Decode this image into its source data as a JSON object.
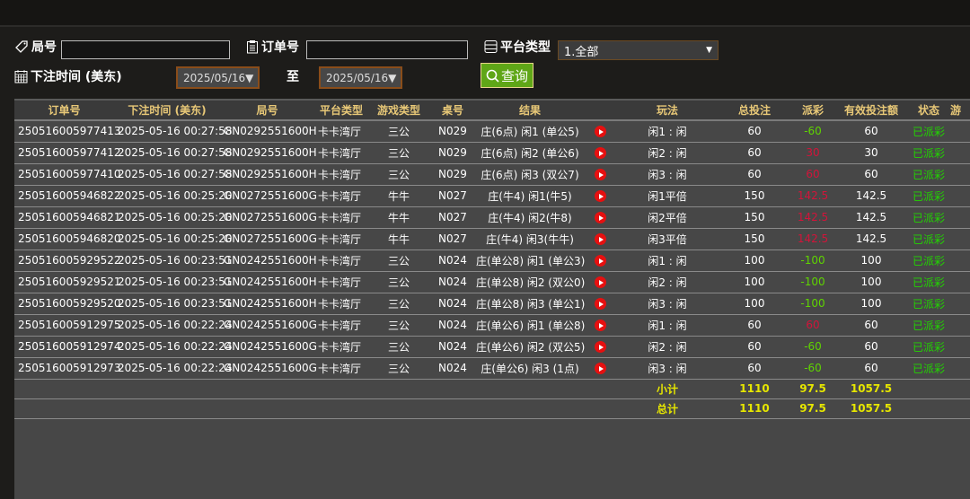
{
  "filters": {
    "round_label": "局号",
    "round_value": "",
    "order_label": "订单号",
    "order_value": "",
    "platform_label": "平台类型",
    "platform_value": "1.全部",
    "time_label": "下注时间 (美东)",
    "date_from": "2025/05/16▼",
    "to_label": "至",
    "date_to": "2025/05/16▼",
    "query_label": "查询"
  },
  "table": {
    "headers": [
      "订单号",
      "下注时间 (美东)",
      "局号",
      "平台类型",
      "游戏类型",
      "桌号",
      "结果",
      "",
      "玩法",
      "总投注",
      "派彩",
      "有效投注额",
      "状态",
      "游"
    ],
    "rows": [
      [
        "250516005977413",
        "2025-05-16 00:27:58",
        "GN0292551600H",
        "卡卡湾厅",
        "三公",
        "N029",
        "庄(6点) 闲1 (单公5)",
        "闲1 : 闲",
        "60",
        "-60",
        "60",
        "已派彩"
      ],
      [
        "250516005977412",
        "2025-05-16 00:27:58",
        "GN0292551600H",
        "卡卡湾厅",
        "三公",
        "N029",
        "庄(6点) 闲2 (单公6)",
        "闲2 : 闲",
        "60",
        "30",
        "30",
        "已派彩"
      ],
      [
        "250516005977410",
        "2025-05-16 00:27:58",
        "GN0292551600H",
        "卡卡湾厅",
        "三公",
        "N029",
        "庄(6点) 闲3 (双公7)",
        "闲3 : 闲",
        "60",
        "60",
        "60",
        "已派彩"
      ],
      [
        "250516005946822",
        "2025-05-16 00:25:20",
        "GN0272551600G",
        "卡卡湾厅",
        "牛牛",
        "N027",
        "庄(牛4) 闲1(牛5)",
        "闲1平倍",
        "150",
        "142.5",
        "142.5",
        "已派彩"
      ],
      [
        "250516005946821",
        "2025-05-16 00:25:20",
        "GN0272551600G",
        "卡卡湾厅",
        "牛牛",
        "N027",
        "庄(牛4) 闲2(牛8)",
        "闲2平倍",
        "150",
        "142.5",
        "142.5",
        "已派彩"
      ],
      [
        "250516005946820",
        "2025-05-16 00:25:20",
        "GN0272551600G",
        "卡卡湾厅",
        "牛牛",
        "N027",
        "庄(牛4) 闲3(牛牛)",
        "闲3平倍",
        "150",
        "142.5",
        "142.5",
        "已派彩"
      ],
      [
        "250516005929522",
        "2025-05-16 00:23:51",
        "GN0242551600H",
        "卡卡湾厅",
        "三公",
        "N024",
        "庄(单公8) 闲1 (单公3)",
        "闲1 : 闲",
        "100",
        "-100",
        "100",
        "已派彩"
      ],
      [
        "250516005929521",
        "2025-05-16 00:23:51",
        "GN0242551600H",
        "卡卡湾厅",
        "三公",
        "N024",
        "庄(单公8) 闲2 (双公0)",
        "闲2 : 闲",
        "100",
        "-100",
        "100",
        "已派彩"
      ],
      [
        "250516005929520",
        "2025-05-16 00:23:51",
        "GN0242551600H",
        "卡卡湾厅",
        "三公",
        "N024",
        "庄(单公8) 闲3 (单公1)",
        "闲3 : 闲",
        "100",
        "-100",
        "100",
        "已派彩"
      ],
      [
        "250516005912975",
        "2025-05-16 00:22:24",
        "GN0242551600G",
        "卡卡湾厅",
        "三公",
        "N024",
        "庄(单公6) 闲1 (单公8)",
        "闲1 : 闲",
        "60",
        "60",
        "60",
        "已派彩"
      ],
      [
        "250516005912974",
        "2025-05-16 00:22:24",
        "GN0242551600G",
        "卡卡湾厅",
        "三公",
        "N024",
        "庄(单公6) 闲2 (双公5)",
        "闲2 : 闲",
        "60",
        "-60",
        "60",
        "已派彩"
      ],
      [
        "250516005912973",
        "2025-05-16 00:22:24",
        "GN0242551600G",
        "卡卡湾厅",
        "三公",
        "N024",
        "庄(单公6) 闲3 (1点)",
        "闲3 : 闲",
        "60",
        "-60",
        "60",
        "已派彩"
      ]
    ],
    "subtotal": {
      "label": "小计",
      "bet": "1110",
      "payout": "97.5",
      "valid": "1057.5"
    },
    "total": {
      "label": "总计",
      "bet": "1110",
      "payout": "97.5",
      "valid": "1057.5"
    }
  },
  "colors": {
    "accent": "#5fa617",
    "header_text": "#e8c877",
    "negative": "#5fd400",
    "positive": "#d2143a",
    "status": "#22d400",
    "summary": "#e6e600"
  }
}
